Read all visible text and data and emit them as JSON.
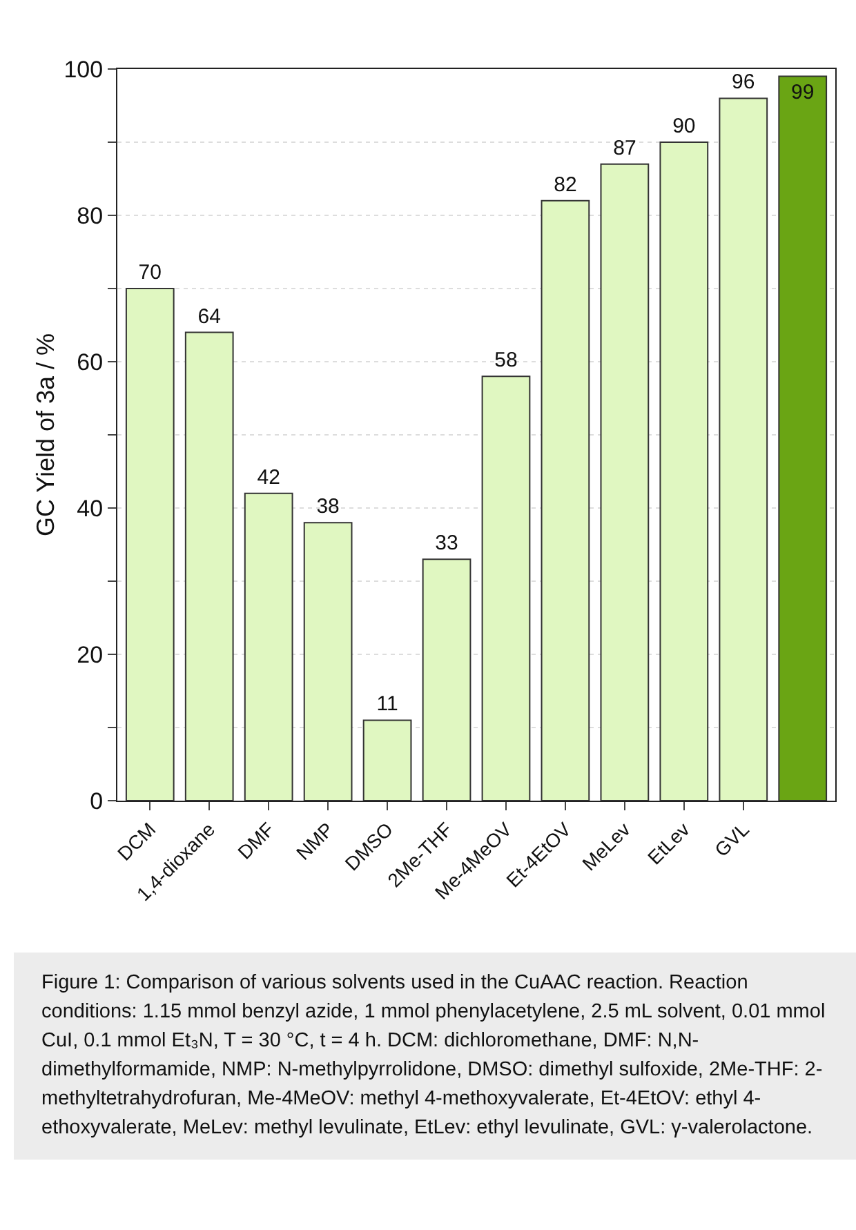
{
  "chart_data": {
    "type": "bar",
    "ylabel": "GC Yield of 3a / %",
    "categories": [
      "DCM",
      "1,4-dioxane",
      "DMF",
      "NMP",
      "DMSO",
      "2Me-THF",
      "Me-4MeOV",
      "Et-4EtOV",
      "MeLev",
      "EtLev",
      "GVL",
      null
    ],
    "values": [
      70,
      64,
      42,
      38,
      11,
      33,
      58,
      82,
      87,
      90,
      96,
      99
    ],
    "colors": [
      "#e0f7c1",
      "#e0f7c1",
      "#e0f7c1",
      "#e0f7c1",
      "#e0f7c1",
      "#e0f7c1",
      "#e0f7c1",
      "#e0f7c1",
      "#e0f7c1",
      "#e0f7c1",
      "#e0f7c1",
      "#6aa514"
    ],
    "ylim": [
      0,
      100
    ],
    "yticks": [
      0,
      {
        "value": 10,
        "label": null
      },
      20,
      {
        "value": 30,
        "label": null
      },
      40,
      {
        "value": 50,
        "label": null
      },
      60,
      {
        "value": 70,
        "label": null
      },
      80,
      {
        "value": 90,
        "label": null
      },
      100
    ],
    "grid": "y",
    "data_labels": true,
    "annotations": [
      "Figure 1: Comparison of various solvents used in the CuAAC reaction. Reaction conditions: 1.15 mmol benzyl azide, 1 mmol phenylacetylene, 2.5 mL solvent, 0.01 mmol CuI, 0.1 mmol Et₃N, T = 30 °C, t = 4 h. DCM: dichloromethane, DMF: N,N-dimethylformamide, NMP: N-methylpyrrolidone, DMSO: dimethyl sulfoxide, 2Me-THF: 2-methyltetrahydrofuran, Me-4MeOV: methyl 4-methoxyvalerate, Et-4EtOV: ethyl 4-ethoxyvalerate, MeLev: methyl levulinate, EtLev: ethyl levulinate, GVL: γ-valerolactone."
    ]
  }
}
